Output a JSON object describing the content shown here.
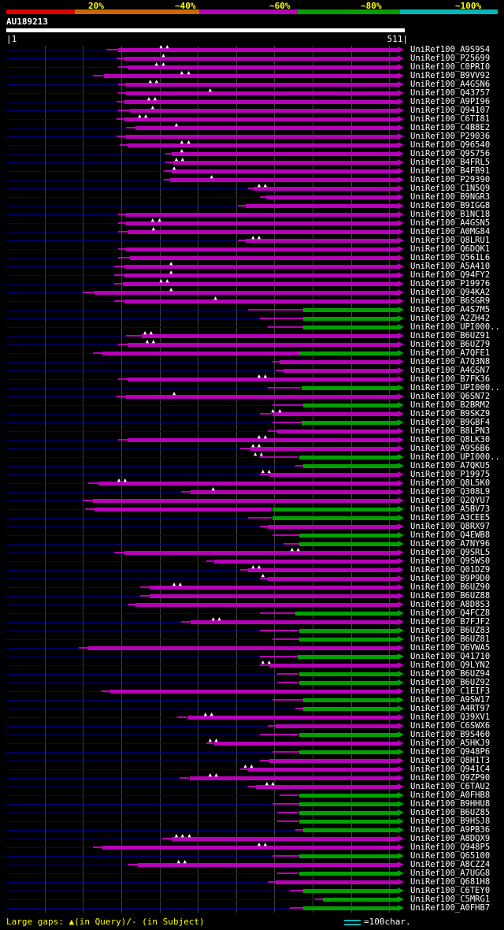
{
  "header": {
    "query_id": "AU189213",
    "axis_start": "|1",
    "axis_end": "511|"
  },
  "footer": {
    "gaps_legend": "Large gaps: ▲(in Query)/- (in Subject)",
    "scale_symbol": "cyan-double-line",
    "scale_legend": "=100char."
  },
  "colors": {
    "background": "#000000",
    "unaligned": "#00007d",
    "grid": "#3f3f3f",
    "query_bar": "#ffffff",
    "hit_mid": "#b800b8",
    "hit_high": "#00a000",
    "text": "#ffffff",
    "scale_text": "#ffff00",
    "legend_cyan": "#00b8b8"
  },
  "chart_data": {
    "type": "bar",
    "title": "AU189213",
    "orientation": "horizontal",
    "x_axis": {
      "min": 1,
      "max": 511,
      "start_label": "|1",
      "end_label": "511|",
      "grid_step": 50
    },
    "legend": {
      "position": "top",
      "entries": [
        {
          "label": "20%",
          "color": "#dd0000"
        },
        {
          "label": "~40%",
          "color": "#cc6600"
        },
        {
          "label": "~60%",
          "color": "#b800b8"
        },
        {
          "label": "~80%",
          "color": "#00a000"
        },
        {
          "label": "~100%",
          "color": "#00b8b8"
        }
      ]
    },
    "rows": [
      {
        "label": "UniRef100_A9S9S4",
        "start": 131,
        "solid": 146,
        "gaps": [
          203,
          211
        ]
      },
      {
        "label": "UniRef100_P25699",
        "start": 144,
        "solid": 154,
        "gaps": [
          206
        ]
      },
      {
        "label": "UniRef100_C0PRI0",
        "start": 146,
        "solid": 158,
        "gaps": [
          197,
          206
        ]
      },
      {
        "label": "UniRef100_B9VV92",
        "start": 113,
        "solid": 127,
        "gaps": [
          230,
          239
        ]
      },
      {
        "label": "UniRef100_A4GSN6",
        "start": 146,
        "solid": 156,
        "gaps": [
          189,
          197
        ]
      },
      {
        "label": "UniRef100_Q43757",
        "start": 146,
        "solid": 156,
        "gaps": [
          267
        ]
      },
      {
        "label": "UniRef100_A9PI96",
        "start": 144,
        "solid": 154,
        "gaps": [
          187,
          195
        ]
      },
      {
        "label": "UniRef100_Q94107",
        "start": 146,
        "solid": 161,
        "gaps": [
          192
        ]
      },
      {
        "label": "UniRef100_C6TI81",
        "start": 144,
        "solid": 154,
        "gaps": [
          175,
          183
        ]
      },
      {
        "label": "UniRef100_C4B8E2",
        "start": 156,
        "solid": 169,
        "gaps": [
          223
        ]
      },
      {
        "label": "UniRef100_P29036",
        "start": 144,
        "solid": 156
      },
      {
        "label": "UniRef100_Q96540",
        "start": 148,
        "solid": 158,
        "gaps": [
          230,
          239
        ]
      },
      {
        "label": "UniRef100_Q9S756",
        "start": 208,
        "solid": 216,
        "gaps": [
          230
        ]
      },
      {
        "label": "UniRef100_B4FRL5",
        "start": 208,
        "solid": 218,
        "gaps": [
          223,
          231
        ]
      },
      {
        "label": "UniRef100_B4FB91",
        "start": 206,
        "solid": 216,
        "gaps": [
          220
        ]
      },
      {
        "label": "UniRef100_P29390",
        "start": 206,
        "solid": 214,
        "gaps": [
          269
        ]
      },
      {
        "label": "UniRef100_C1N5Q9",
        "start": 316,
        "solid": 323,
        "gaps": [
          331,
          339
        ]
      },
      {
        "label": "UniRef100_B9NGR3",
        "start": 331,
        "solid": 339
      },
      {
        "label": "UniRef100_B9IGG8",
        "start": 302,
        "solid": 313
      },
      {
        "label": "UniRef100_B1NC18",
        "start": 146,
        "solid": 156
      },
      {
        "label": "UniRef100_A4GSN5",
        "start": 146,
        "solid": 156,
        "gaps": [
          192,
          201
        ]
      },
      {
        "label": "UniRef100_A0MG84",
        "start": 146,
        "solid": 158,
        "gaps": [
          193
        ]
      },
      {
        "label": "UniRef100_Q8LRU1",
        "start": 302,
        "solid": 313,
        "gaps": [
          323,
          331
        ]
      },
      {
        "label": "UniRef100_Q6DQK1",
        "start": 146,
        "solid": 156
      },
      {
        "label": "UniRef100_Q561L6",
        "start": 146,
        "solid": 161
      },
      {
        "label": "UniRef100_A5A410",
        "start": 141,
        "solid": 154,
        "gaps": [
          216
        ]
      },
      {
        "label": "UniRef100_Q94FY2",
        "start": 141,
        "solid": 154,
        "gaps": [
          216
        ]
      },
      {
        "label": "UniRef100_P19976",
        "start": 141,
        "solid": 152,
        "gaps": [
          203,
          211
        ]
      },
      {
        "label": "UniRef100_Q94KA2",
        "start": 100,
        "solid": 115,
        "gaps": [
          216
        ]
      },
      {
        "label": "UniRef100_B6SGR9",
        "start": 141,
        "solid": 154,
        "gaps": [
          274
        ]
      },
      {
        "label": "UniRef100_A4S7M5",
        "start": 316,
        "solid": 388,
        "green": 388
      },
      {
        "label": "UniRef100_A2ZH42",
        "start": 331,
        "solid": 388,
        "green": 388
      },
      {
        "label": "UniRef100_UPI000..",
        "start": 341,
        "solid": 388,
        "green": 388
      },
      {
        "label": "UniRef100_B6UZ91",
        "start": 156,
        "solid": 177,
        "gaps": [
          182,
          190
        ]
      },
      {
        "label": "UniRef100_B6UZ79",
        "start": 146,
        "solid": 158,
        "gaps": [
          185,
          193
        ]
      },
      {
        "label": "UniRef100_A7QFE1",
        "start": 113,
        "solid": 125,
        "green": 382
      },
      {
        "label": "UniRef100_A7Q3N8",
        "start": 347,
        "solid": 357
      },
      {
        "label": "UniRef100_A4GSN7",
        "start": 352,
        "solid": 362
      },
      {
        "label": "UniRef100_B7FK36",
        "start": 146,
        "solid": 158,
        "gaps": [
          331,
          339
        ]
      },
      {
        "label": "UniRef100_UPI000..",
        "start": 341,
        "solid": 385,
        "green": 385
      },
      {
        "label": "UniRef100_Q6SN72",
        "start": 144,
        "solid": 156,
        "gaps": [
          220
        ]
      },
      {
        "label": "UniRef100_B2BRM2",
        "start": 347,
        "solid": 388,
        "green": 388
      },
      {
        "label": "UniRef100_B9SKZ9",
        "start": 331,
        "solid": 347,
        "gaps": [
          349,
          358
        ]
      },
      {
        "label": "UniRef100_B9GBF4",
        "start": 347,
        "solid": 385,
        "green": 385
      },
      {
        "label": "UniRef100_B8LPN3",
        "start": 341,
        "solid": 354
      },
      {
        "label": "UniRef100_Q8LK30",
        "start": 146,
        "solid": 158,
        "gaps": [
          331,
          339
        ]
      },
      {
        "label": "UniRef100_A9S6B6",
        "start": 305,
        "solid": 319,
        "gaps": [
          323,
          331
        ]
      },
      {
        "label": "UniRef100_UPI000..",
        "start": 331,
        "solid": 382,
        "green": 382,
        "gaps": [
          326,
          334
        ]
      },
      {
        "label": "UniRef100_A7QKU5",
        "start": 377,
        "solid": 388,
        "green": 388
      },
      {
        "label": "UniRef100_P19975",
        "start": 331,
        "solid": 343,
        "gaps": [
          336,
          344
        ]
      },
      {
        "label": "UniRef100_Q8L5K0",
        "start": 107,
        "solid": 120,
        "gaps": [
          148,
          156
        ]
      },
      {
        "label": "UniRef100_Q308L9",
        "start": 228,
        "solid": 241,
        "gaps": [
          271
        ]
      },
      {
        "label": "UniRef100_Q2QYU7",
        "start": 100,
        "solid": 113
      },
      {
        "label": "UniRef100_A5BV73",
        "start": 103,
        "solid": 115,
        "green": 347
      },
      {
        "label": "UniRef100_A3CEE5",
        "start": 316,
        "solid": 347,
        "green": 347
      },
      {
        "label": "UniRef100_Q8RX97",
        "start": 331,
        "solid": 341
      },
      {
        "label": "UniRef100_Q4EWB8",
        "start": 347,
        "solid": 382,
        "green": 382
      },
      {
        "label": "UniRef100_A7NY96",
        "start": 362,
        "solid": 382,
        "green": 382
      },
      {
        "label": "UniRef100_Q9SRL5",
        "start": 141,
        "solid": 154,
        "gaps": [
          374,
          382
        ]
      },
      {
        "label": "UniRef100_Q9SWS0",
        "start": 261,
        "solid": 271
      },
      {
        "label": "UniRef100_Q01DZ9",
        "start": 305,
        "solid": 316,
        "gaps": [
          323,
          331
        ]
      },
      {
        "label": "UniRef100_B9P9D0",
        "start": 331,
        "solid": 341,
        "gaps": [
          336
        ]
      },
      {
        "label": "UniRef100_B6UZ90",
        "start": 175,
        "solid": 187,
        "gaps": [
          220,
          228
        ]
      },
      {
        "label": "UniRef100_B6UZ88",
        "start": 175,
        "solid": 187
      },
      {
        "label": "UniRef100_A8D8S3",
        "start": 158,
        "solid": 169
      },
      {
        "label": "UniRef100_Q4FCZ8",
        "start": 331,
        "solid": 377,
        "green": 377
      },
      {
        "label": "UniRef100_B7FJF2",
        "start": 228,
        "solid": 241,
        "gaps": [
          271,
          279
        ]
      },
      {
        "label": "UniRef100_B6UZ83",
        "start": 331,
        "solid": 382,
        "green": 382
      },
      {
        "label": "UniRef100_B6UZ81",
        "start": 347,
        "solid": 382,
        "green": 382
      },
      {
        "label": "UniRef100_Q6VWA5",
        "start": 95,
        "solid": 107
      },
      {
        "label": "UniRef100_Q41710",
        "start": 331,
        "solid": 380,
        "green": 380
      },
      {
        "label": "UniRef100_Q9LYN2",
        "start": 331,
        "solid": 343,
        "gaps": [
          336,
          344
        ]
      },
      {
        "label": "UniRef100_B6UZ94",
        "start": 354,
        "solid": 382,
        "green": 382
      },
      {
        "label": "UniRef100_B6UZ92",
        "start": 354,
        "solid": 382,
        "green": 382
      },
      {
        "label": "UniRef100_C1EIF3",
        "start": 123,
        "solid": 136
      },
      {
        "label": "UniRef100_A9SW17",
        "start": 347,
        "solid": 388,
        "green": 388
      },
      {
        "label": "UniRef100_A4RT97",
        "start": 377,
        "solid": 388,
        "green": 388
      },
      {
        "label": "UniRef100_Q39XV1",
        "start": 223,
        "solid": 236,
        "gaps": [
          261,
          269
        ]
      },
      {
        "label": "UniRef100_C6SWX6",
        "start": 341,
        "solid": 352
      },
      {
        "label": "UniRef100_B9S460",
        "start": 331,
        "solid": 382,
        "green": 382
      },
      {
        "label": "UniRef100_A5HKJ9",
        "start": 261,
        "solid": 271,
        "gaps": [
          267,
          275
        ]
      },
      {
        "label": "UniRef100_Q948P6",
        "start": 347,
        "solid": 382,
        "green": 382
      },
      {
        "label": "UniRef100_Q8H1T3",
        "start": 331,
        "solid": 343
      },
      {
        "label": "UniRef100_Q941C4",
        "start": 305,
        "solid": 316,
        "gaps": [
          313,
          321
        ]
      },
      {
        "label": "UniRef100_Q9ZP90",
        "start": 226,
        "solid": 239,
        "gaps": [
          267,
          275
        ]
      },
      {
        "label": "UniRef100_C6TAU2",
        "start": 316,
        "solid": 326,
        "gaps": [
          341,
          349
        ]
      },
      {
        "label": "UniRef100_A0FHB8",
        "start": 357,
        "solid": 382,
        "green": 382
      },
      {
        "label": "UniRef100_B9HHU8",
        "start": 347,
        "solid": 382,
        "green": 382
      },
      {
        "label": "UniRef100_B6UZ85",
        "start": 354,
        "solid": 382,
        "green": 382
      },
      {
        "label": "UniRef100_B9HSJ8",
        "start": 354,
        "solid": 382,
        "green": 382
      },
      {
        "label": "UniRef100_A9PB36",
        "start": 377,
        "solid": 388,
        "green": 388
      },
      {
        "label": "UniRef100_A8DQX9",
        "start": 203,
        "solid": 216,
        "gaps": [
          223,
          231,
          240
        ]
      },
      {
        "label": "UniRef100_Q948P5",
        "start": 113,
        "solid": 125,
        "gaps": [
          331,
          339
        ]
      },
      {
        "label": "UniRef100_Q65100",
        "start": 347,
        "solid": 382,
        "green": 382
      },
      {
        "label": "UniRef100_A8CZZ4",
        "start": 158,
        "solid": 172,
        "gaps": [
          226,
          234
        ]
      },
      {
        "label": "UniRef100_A7UGG8",
        "start": 354,
        "solid": 382,
        "green": 382
      },
      {
        "label": "UniRef100_Q681H8",
        "start": 341,
        "solid": 352
      },
      {
        "label": "UniRef100_C6TEY0",
        "start": 370,
        "solid": 388,
        "green": 388
      },
      {
        "label": "UniRef100_C5MRG1",
        "start": 403,
        "solid": 413,
        "green": 413
      },
      {
        "label": "UniRef100_A0FHB7",
        "start": 370,
        "solid": 388,
        "green": 388
      }
    ]
  }
}
